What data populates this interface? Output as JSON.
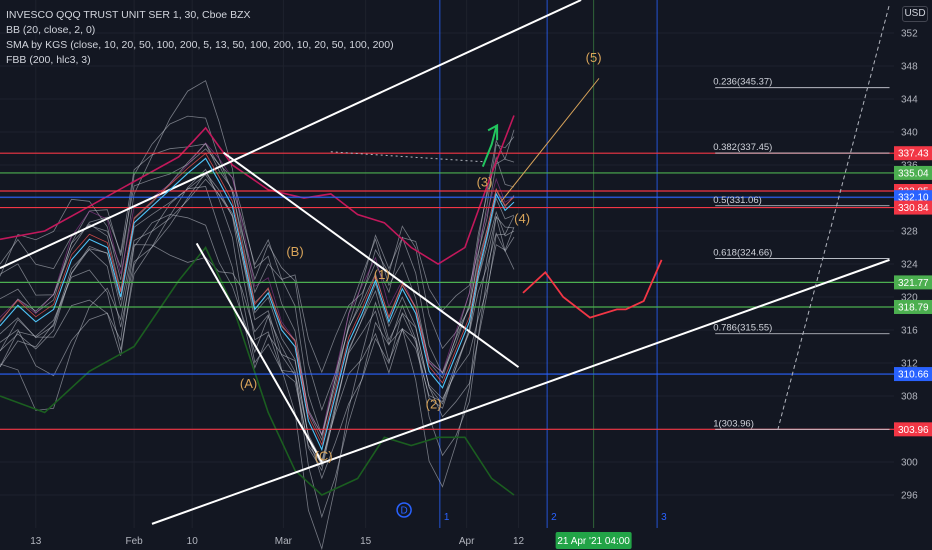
{
  "legend": {
    "symbol": "INVESCO QQQ TRUST UNIT SER 1, 30, Cboe BZX",
    "bb": "BB (20, close, 2, 0)",
    "sma": "SMA by KGS (close, 10, 20, 50, 100, 200, 5, 13, 50, 100, 200, 10, 20, 50, 100, 200)",
    "fbb": "FBB (200, hlc3, 3)"
  },
  "currency": "USD",
  "colors": {
    "background": "#131722",
    "red": "#f23645",
    "green": "#4caf50",
    "blue": "#2962ff",
    "white": "#ffffff",
    "wave_label": "#d8a45a"
  },
  "chart_data": {
    "type": "line",
    "title": "INVESCO QQQ TRUST UNIT SER 1, 30, Cboe BZX",
    "ylim": [
      292,
      356
    ],
    "y_ticks": [
      296,
      300,
      304,
      308,
      312,
      316,
      320,
      324,
      328,
      332,
      336,
      340,
      344,
      348,
      352
    ],
    "x_ticks": [
      {
        "label": "13",
        "pos": 0.04
      },
      {
        "label": "Feb",
        "pos": 0.15
      },
      {
        "label": "10",
        "pos": 0.215
      },
      {
        "label": "Mar",
        "pos": 0.317
      },
      {
        "label": "15",
        "pos": 0.409
      },
      {
        "label": "Apr",
        "pos": 0.522
      },
      {
        "label": "12",
        "pos": 0.58
      }
    ],
    "x_highlight": "21 Apr '21   04:00",
    "price_path": [
      [
        0.0,
        316.5
      ],
      [
        0.02,
        319.0
      ],
      [
        0.04,
        317.0
      ],
      [
        0.06,
        318.5
      ],
      [
        0.08,
        324.5
      ],
      [
        0.1,
        327.0
      ],
      [
        0.12,
        326.0
      ],
      [
        0.135,
        320.0
      ],
      [
        0.15,
        329.0
      ],
      [
        0.17,
        331.0
      ],
      [
        0.19,
        333.0
      ],
      [
        0.21,
        335.0
      ],
      [
        0.23,
        336.8
      ],
      [
        0.245,
        334.0
      ],
      [
        0.26,
        331.0
      ],
      [
        0.27,
        326.0
      ],
      [
        0.285,
        318.5
      ],
      [
        0.3,
        320.5
      ],
      [
        0.315,
        316.0
      ],
      [
        0.33,
        314.0
      ],
      [
        0.345,
        305.0
      ],
      [
        0.36,
        301.5
      ],
      [
        0.375,
        308.0
      ],
      [
        0.39,
        314.5
      ],
      [
        0.405,
        318.0
      ],
      [
        0.42,
        322.0
      ],
      [
        0.435,
        317.0
      ],
      [
        0.45,
        321.0
      ],
      [
        0.465,
        318.0
      ],
      [
        0.48,
        311.0
      ],
      [
        0.495,
        309.0
      ],
      [
        0.51,
        313.0
      ],
      [
        0.525,
        317.0
      ],
      [
        0.535,
        323.0
      ],
      [
        0.545,
        327.5
      ],
      [
        0.555,
        332.5
      ],
      [
        0.565,
        330.5
      ],
      [
        0.575,
        331.5
      ]
    ],
    "red_projection": [
      [
        0.585,
        320.5
      ],
      [
        0.61,
        323.0
      ],
      [
        0.63,
        320.0
      ],
      [
        0.66,
        317.5
      ],
      [
        0.69,
        318.5
      ],
      [
        0.7,
        318.5
      ],
      [
        0.72,
        319.5
      ],
      [
        0.74,
        324.5
      ]
    ],
    "bb_upper": [
      [
        0.0,
        327
      ],
      [
        0.05,
        328
      ],
      [
        0.1,
        331
      ],
      [
        0.15,
        334
      ],
      [
        0.2,
        337
      ],
      [
        0.23,
        340.5
      ],
      [
        0.26,
        336
      ],
      [
        0.3,
        333
      ],
      [
        0.34,
        332
      ],
      [
        0.37,
        332.5
      ],
      [
        0.4,
        330
      ],
      [
        0.43,
        329
      ],
      [
        0.46,
        326
      ],
      [
        0.49,
        324
      ],
      [
        0.52,
        326
      ],
      [
        0.55,
        335
      ],
      [
        0.575,
        342
      ]
    ],
    "bb_lower": [
      [
        0.0,
        308
      ],
      [
        0.05,
        306
      ],
      [
        0.1,
        311
      ],
      [
        0.15,
        314
      ],
      [
        0.2,
        322
      ],
      [
        0.23,
        326
      ],
      [
        0.26,
        319
      ],
      [
        0.3,
        306
      ],
      [
        0.33,
        299
      ],
      [
        0.36,
        296
      ],
      [
        0.4,
        298
      ],
      [
        0.43,
        303
      ],
      [
        0.46,
        302
      ],
      [
        0.49,
        303
      ],
      [
        0.52,
        303
      ],
      [
        0.55,
        298
      ],
      [
        0.575,
        296
      ]
    ],
    "horizontal_levels": [
      {
        "price": 337.43,
        "label": "337.43",
        "color": "#f23645"
      },
      {
        "price": 335.04,
        "label": "335.04",
        "color": "#4caf50"
      },
      {
        "price": 332.85,
        "label": "332.85",
        "color": "#f23645"
      },
      {
        "price": 332.1,
        "label": "332.10",
        "color": "#2962ff"
      },
      {
        "price": 330.84,
        "label": "330.84",
        "color": "#f23645"
      },
      {
        "price": 321.77,
        "label": "321.77",
        "color": "#4caf50"
      },
      {
        "price": 318.79,
        "label": "318.79",
        "color": "#4caf50"
      },
      {
        "price": 310.66,
        "label": "310.66",
        "color": "#2962ff"
      },
      {
        "price": 303.96,
        "label": "303.96",
        "color": "#f23645"
      }
    ],
    "fib_levels": [
      {
        "label": "0.236(345.37)",
        "price": 345.37
      },
      {
        "label": "0.382(337.45)",
        "price": 337.45
      },
      {
        "label": "0.5(331.06)",
        "price": 331.06
      },
      {
        "label": "0.618(324.66)",
        "price": 324.66
      },
      {
        "label": "0.786(315.55)",
        "price": 315.55
      },
      {
        "label": "1(303.96)",
        "price": 303.96
      }
    ],
    "wave_labels": [
      {
        "text": "(A)",
        "x": 0.278,
        "y": 309.0
      },
      {
        "text": "(B)",
        "x": 0.33,
        "y": 325.0
      },
      {
        "text": "(C)",
        "x": 0.362,
        "y": 300.2
      },
      {
        "text": "(1)",
        "x": 0.427,
        "y": 322.2
      },
      {
        "text": "(2)",
        "x": 0.485,
        "y": 306.5
      },
      {
        "text": "(3)",
        "x": 0.542,
        "y": 333.4
      },
      {
        "text": "(4)",
        "x": 0.584,
        "y": 329.0
      },
      {
        "text": "(5)",
        "x": 0.664,
        "y": 348.5
      }
    ],
    "vertical_lines": [
      {
        "label": "1",
        "pos": 0.492
      },
      {
        "label": "2",
        "pos": 0.612
      },
      {
        "label": "3",
        "pos": 0.735
      }
    ],
    "d_marker": "D"
  }
}
